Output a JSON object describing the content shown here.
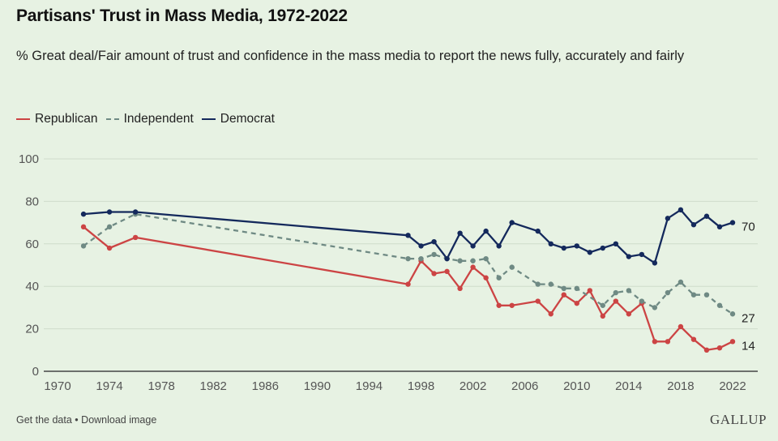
{
  "chart_data": {
    "type": "line",
    "title": "Partisans' Trust in Mass Media, 1972-2022",
    "subtitle": "% Great deal/Fair amount of trust and confidence in the mass media to report the news fully, accurately and fairly",
    "xlabel": "",
    "ylabel": "",
    "xlim": [
      1970,
      2022
    ],
    "ylim": [
      0,
      100
    ],
    "x_ticks": [
      1970,
      1974,
      1978,
      1982,
      1986,
      1990,
      1994,
      1998,
      2002,
      2006,
      2010,
      2014,
      2018,
      2022
    ],
    "y_ticks": [
      0,
      20,
      40,
      60,
      80,
      100
    ],
    "grid": true,
    "legend_position": "top-left",
    "x": [
      1972,
      1974,
      1976,
      1997,
      1998,
      1999,
      2000,
      2001,
      2002,
      2003,
      2004,
      2005,
      2007,
      2008,
      2009,
      2010,
      2011,
      2012,
      2013,
      2014,
      2015,
      2016,
      2017,
      2018,
      2019,
      2020,
      2021,
      2022
    ],
    "series": [
      {
        "name": "Republican",
        "color": "#cc4444",
        "dashed": false,
        "values": [
          68,
          58,
          63,
          41,
          52,
          46,
          47,
          39,
          49,
          44,
          31,
          31,
          33,
          27,
          36,
          32,
          38,
          26,
          33,
          27,
          32,
          14,
          14,
          21,
          15,
          10,
          11,
          14
        ],
        "end_label": "14"
      },
      {
        "name": "Independent",
        "color": "#6f8a84",
        "dashed": true,
        "values": [
          59,
          68,
          74,
          53,
          53,
          55,
          53,
          52,
          52,
          53,
          44,
          49,
          41,
          41,
          39,
          39,
          null,
          31,
          37,
          38,
          33,
          30,
          37,
          42,
          36,
          36,
          31,
          27
        ],
        "end_label": "27"
      },
      {
        "name": "Democrat",
        "color": "#14295c",
        "dashed": false,
        "values": [
          74,
          75,
          75,
          64,
          59,
          61,
          53,
          65,
          59,
          66,
          59,
          70,
          66,
          60,
          58,
          59,
          56,
          58,
          60,
          54,
          55,
          51,
          72,
          76,
          69,
          73,
          68,
          70
        ],
        "end_label": "70"
      }
    ]
  },
  "footer": {
    "get_data": "Get the data",
    "separator": "•",
    "download": "Download image",
    "brand": "GALLUP"
  }
}
